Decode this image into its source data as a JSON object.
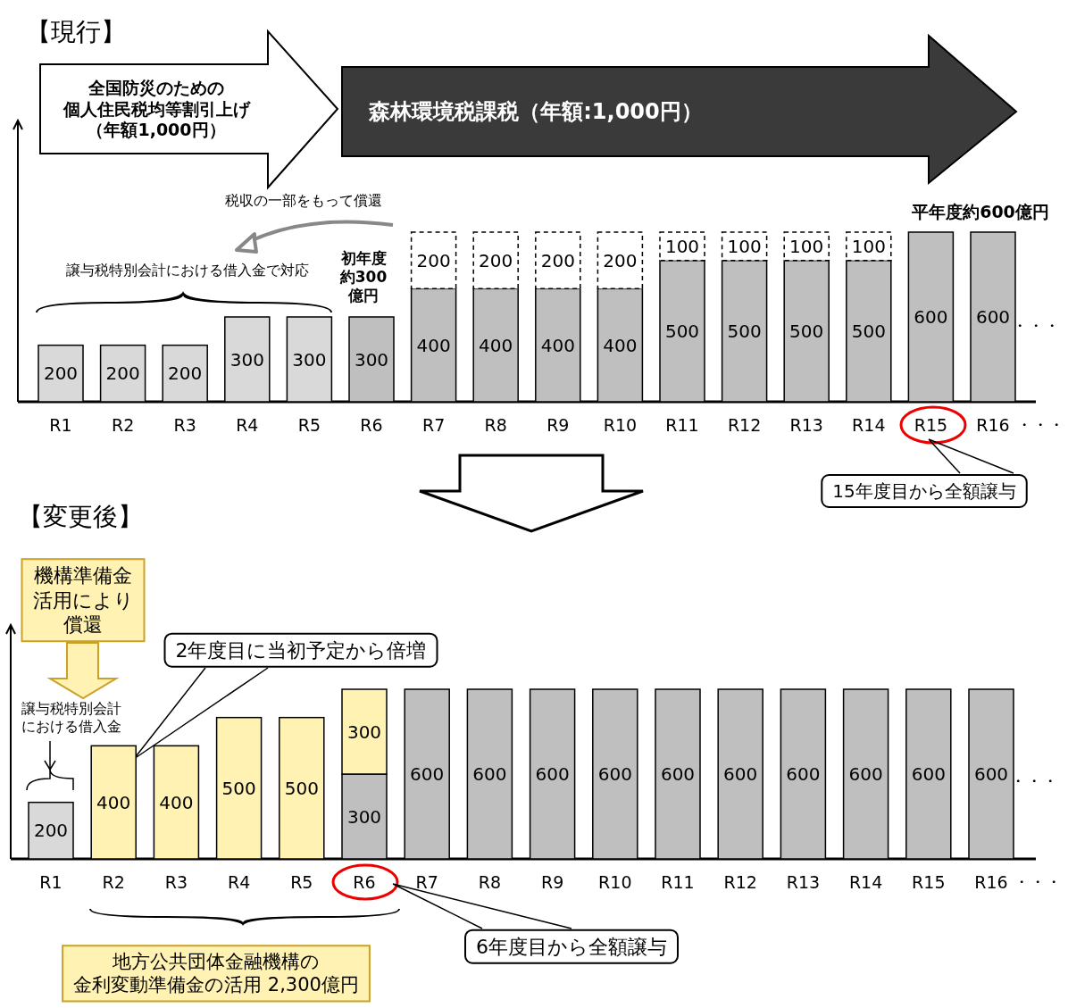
{
  "chart_data": [
    {
      "type": "bar",
      "stacked": true,
      "data_labels": true,
      "categories": [
        "R1",
        "R2",
        "R3",
        "R4",
        "R5",
        "R6",
        "R7",
        "R8",
        "R9",
        "R10",
        "R11",
        "R12",
        "R13",
        "R14",
        "R15",
        "R16"
      ],
      "series": [
        {
          "color": "#d9d9d9",
          "values": [
            200,
            200,
            200,
            300,
            300,
            null,
            null,
            null,
            null,
            null,
            null,
            null,
            null,
            null,
            null,
            null
          ]
        },
        {
          "color": "#bfbfbf",
          "values": [
            null,
            null,
            null,
            null,
            null,
            300,
            400,
            400,
            400,
            400,
            500,
            500,
            500,
            500,
            600,
            600
          ]
        },
        {
          "color": "#ffffff",
          "line_style": "dashed",
          "values": [
            null,
            null,
            null,
            null,
            null,
            null,
            200,
            200,
            200,
            200,
            100,
            100,
            100,
            100,
            null,
            null
          ]
        }
      ],
      "annotations": [
        "【現行】",
        "全国防災のための個人住民税均等割引上げ（年額1,000円）",
        "森林環境税課税（年額:1,000円）",
        "税収の一部をもって償還",
        "譲与税特別会計における借入金で対応",
        "初年度約300億円",
        "平年度約600億円",
        "15年度目から全額譲与",
        "・・・",
        "・・・"
      ]
    },
    {
      "type": "bar",
      "stacked": true,
      "data_labels": true,
      "categories": [
        "R1",
        "R2",
        "R3",
        "R4",
        "R5",
        "R6",
        "R7",
        "R8",
        "R9",
        "R10",
        "R11",
        "R12",
        "R13",
        "R14",
        "R15",
        "R16"
      ],
      "series": [
        {
          "color": "#d9d9d9",
          "values": [
            200,
            null,
            null,
            null,
            null,
            null,
            null,
            null,
            null,
            null,
            null,
            null,
            null,
            null,
            null,
            null
          ]
        },
        {
          "color": "#bfbfbf",
          "values": [
            null,
            null,
            null,
            null,
            null,
            300,
            600,
            600,
            600,
            600,
            600,
            600,
            600,
            600,
            600,
            600
          ]
        },
        {
          "color": "#fff2b3",
          "values": [
            null,
            400,
            400,
            500,
            500,
            300,
            null,
            null,
            null,
            null,
            null,
            null,
            null,
            null,
            null,
            null
          ]
        }
      ],
      "annotations": [
        "【変更後】",
        "機構準備金活用により償還",
        "譲与税特別会計における借入金",
        "2年度目に当初予定から倍増",
        "6年度目から全額譲与",
        "地方公共団体金融機構の金利変動準備金の活用 2,300億円",
        "・・・",
        "・・・"
      ]
    }
  ]
}
